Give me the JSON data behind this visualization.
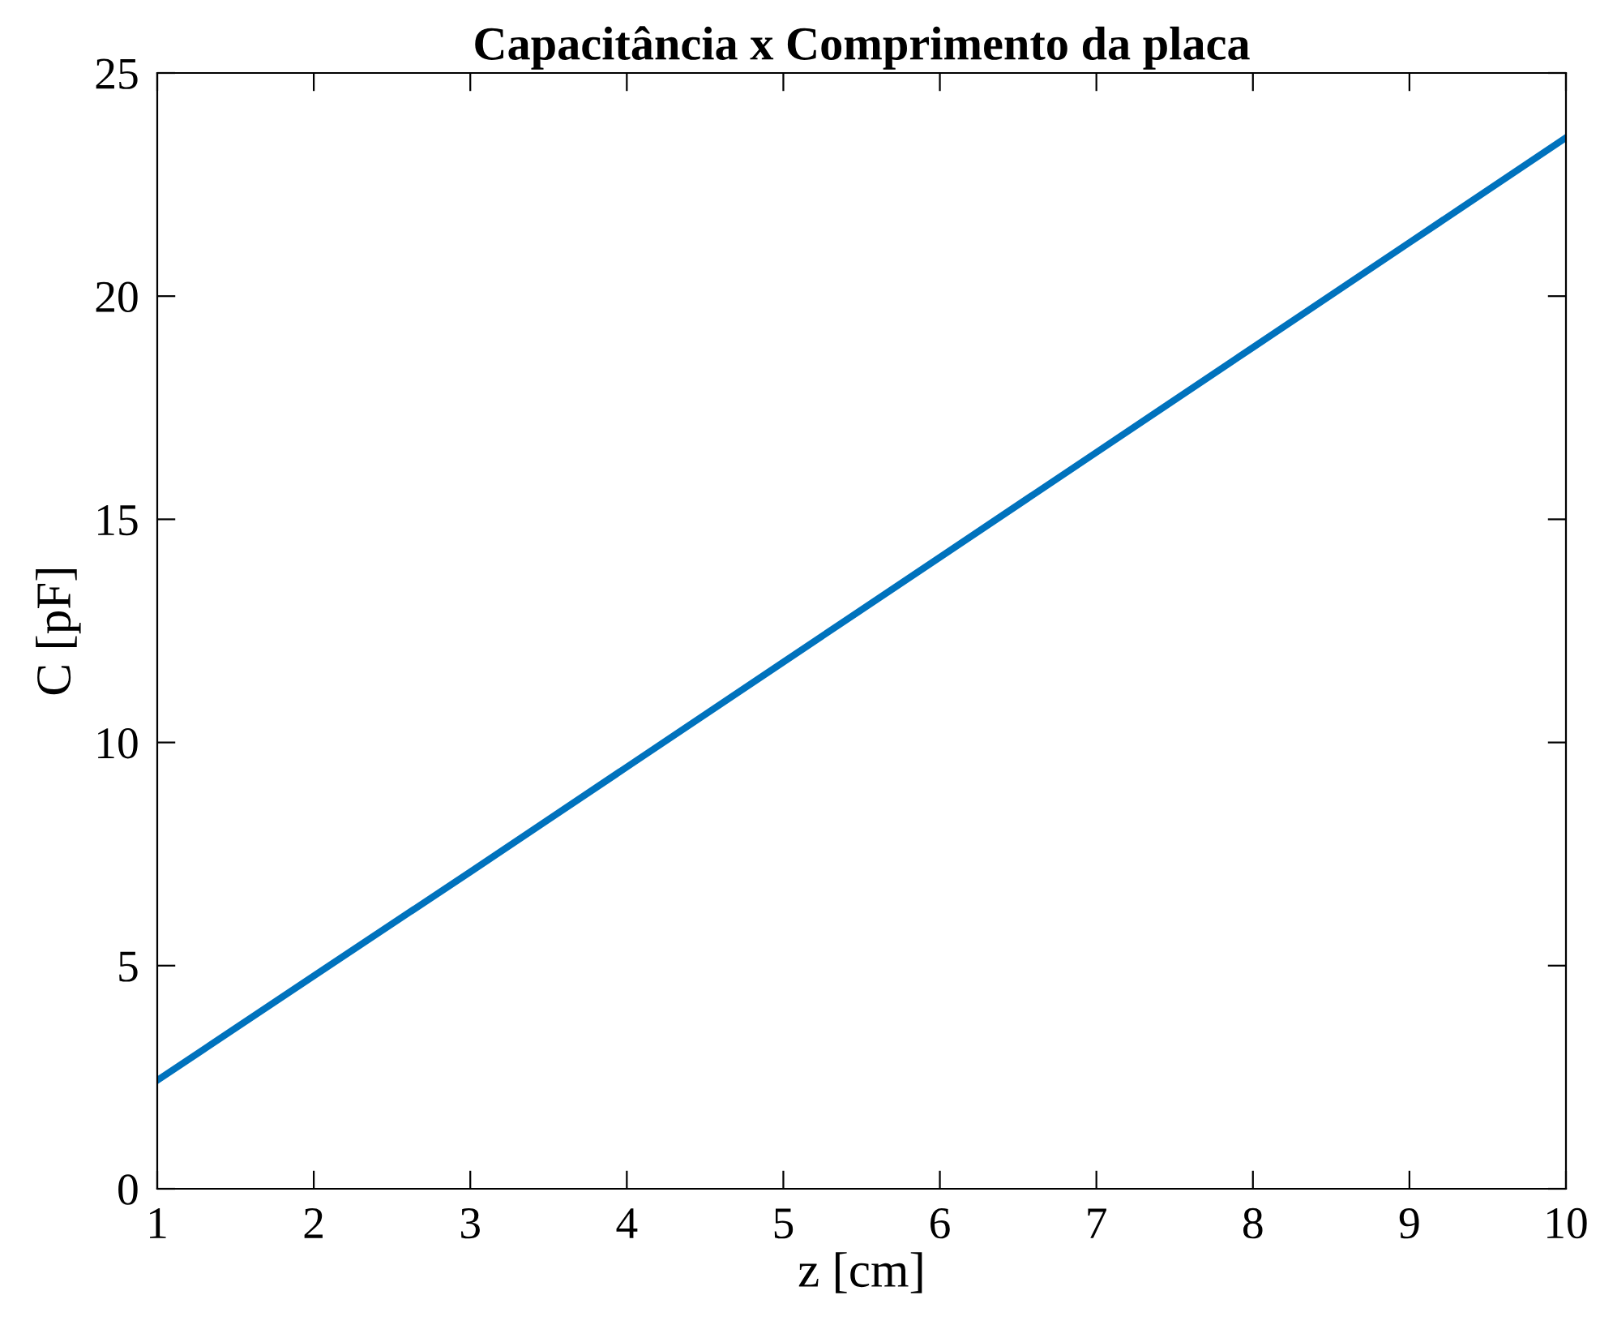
{
  "chart_data": {
    "type": "line",
    "title": "Capacitância x Comprimento da placa",
    "xlabel": "z [cm]",
    "ylabel": "C [pF]",
    "x": [
      1,
      2,
      3,
      4,
      5,
      6,
      7,
      8,
      9,
      10
    ],
    "series": [
      {
        "color": "#0072bd",
        "values": [
          2.43,
          4.77,
          7.1,
          9.45,
          11.8,
          14.15,
          16.5,
          18.85,
          21.2,
          23.55
        ]
      }
    ],
    "xlim": [
      1,
      10
    ],
    "ylim": [
      0,
      25
    ],
    "xticks": [
      1,
      2,
      3,
      4,
      5,
      6,
      7,
      8,
      9,
      10
    ],
    "yticks": [
      0,
      5,
      10,
      15,
      20,
      25
    ],
    "grid": false,
    "marker": "none",
    "line_style": "solid"
  }
}
